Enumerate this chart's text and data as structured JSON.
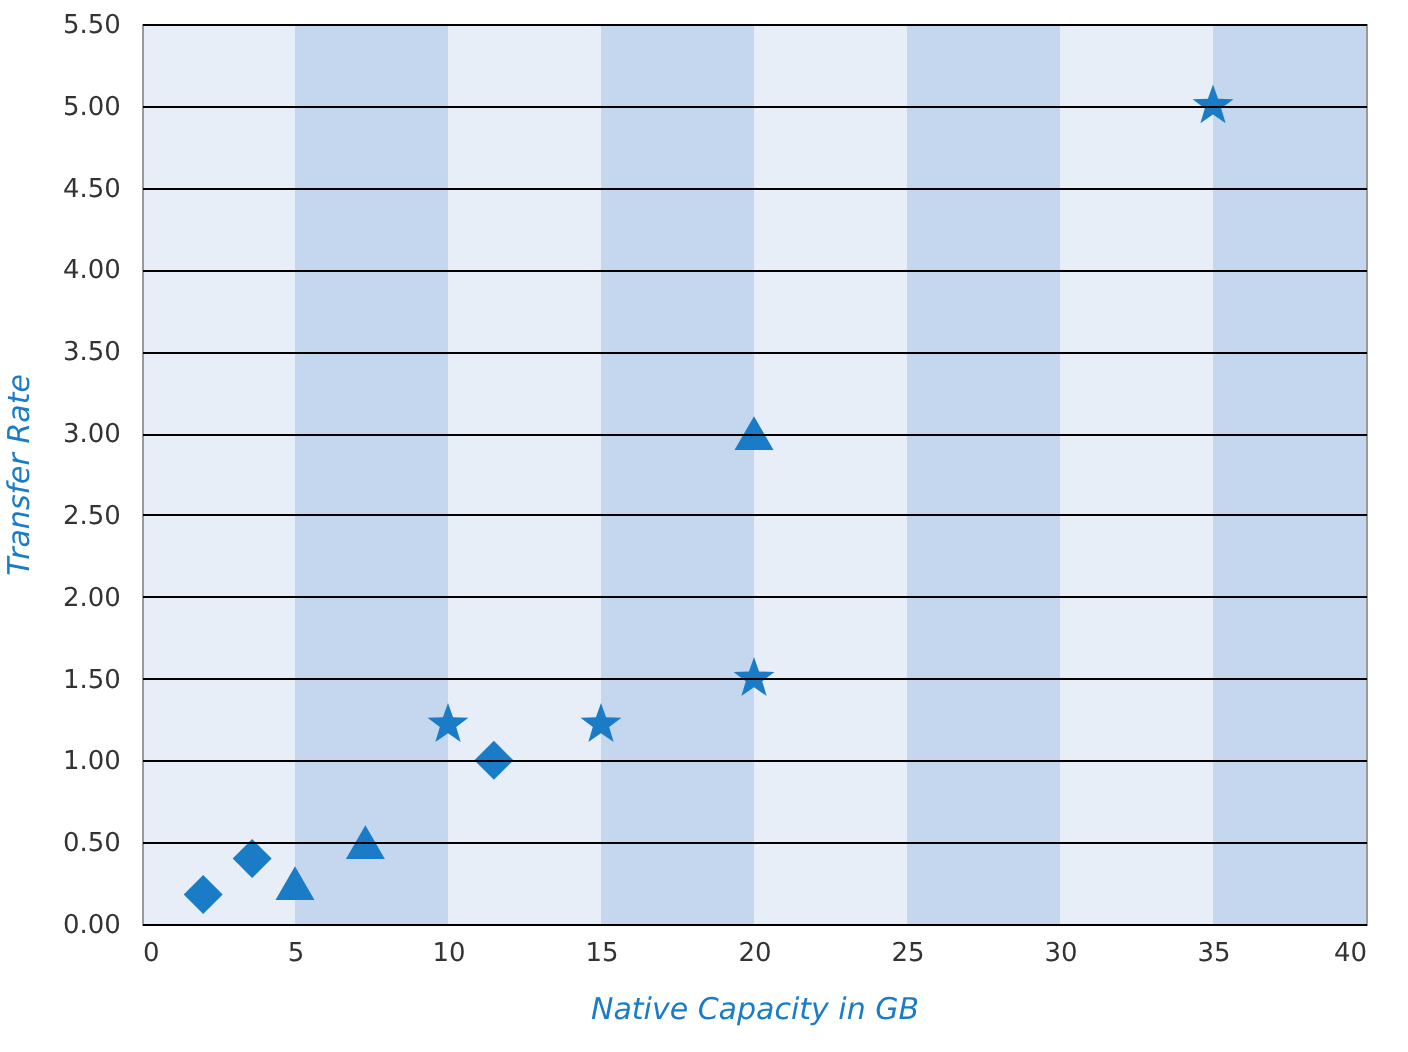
{
  "chart_data": {
    "type": "scatter",
    "xlabel": "Native Capacity in GB",
    "ylabel": "Transfer Rate",
    "xlim": [
      0,
      40
    ],
    "xticks": [
      0,
      5,
      10,
      15,
      20,
      25,
      30,
      35,
      40
    ],
    "ylim": [
      0,
      5.5
    ],
    "yticks": [
      {
        "value": 0,
        "label": "0.00"
      },
      {
        "value": 0.5,
        "label": "0.50"
      },
      {
        "value": 1,
        "label": "1.00"
      },
      {
        "value": 1.5,
        "label": "1.50"
      },
      {
        "value": 2,
        "label": "2.00"
      },
      {
        "value": 2.5,
        "label": "2.50"
      },
      {
        "value": 3,
        "label": "3.00"
      },
      {
        "value": 3.5,
        "label": "3.50"
      },
      {
        "value": 4,
        "label": "4.00"
      },
      {
        "value": 4.5,
        "label": "4.50"
      },
      {
        "value": 5,
        "label": "5.00"
      },
      {
        "value": 5.5,
        "label": "5.50"
      }
    ],
    "grid": "y",
    "legend": false,
    "bands": [
      {
        "axis": "x",
        "from": 5,
        "to": 10,
        "color": "#c5d7ef"
      },
      {
        "axis": "x",
        "from": 15,
        "to": 20,
        "color": "#c5d7ef"
      },
      {
        "axis": "x",
        "from": 25,
        "to": 30,
        "color": "#c5d7ef"
      },
      {
        "axis": "x",
        "from": 35,
        "to": 40,
        "color": "#c5d7ef"
      }
    ],
    "series": [
      {
        "color": "#1a7cc6",
        "marker": "diamond",
        "x": [
          2,
          3.6,
          11.5
        ],
        "values": [
          0.18,
          0.4,
          1.0
        ]
      },
      {
        "color": "#1a7cc6",
        "marker": "triangle",
        "x": [
          5,
          7.3,
          20
        ],
        "values": [
          0.25,
          0.5,
          3.0
        ]
      },
      {
        "color": "#1a7cc6",
        "marker": "star",
        "x": [
          10,
          15,
          20,
          35
        ],
        "values": [
          1.22,
          1.22,
          1.5,
          5.0
        ]
      }
    ]
  }
}
